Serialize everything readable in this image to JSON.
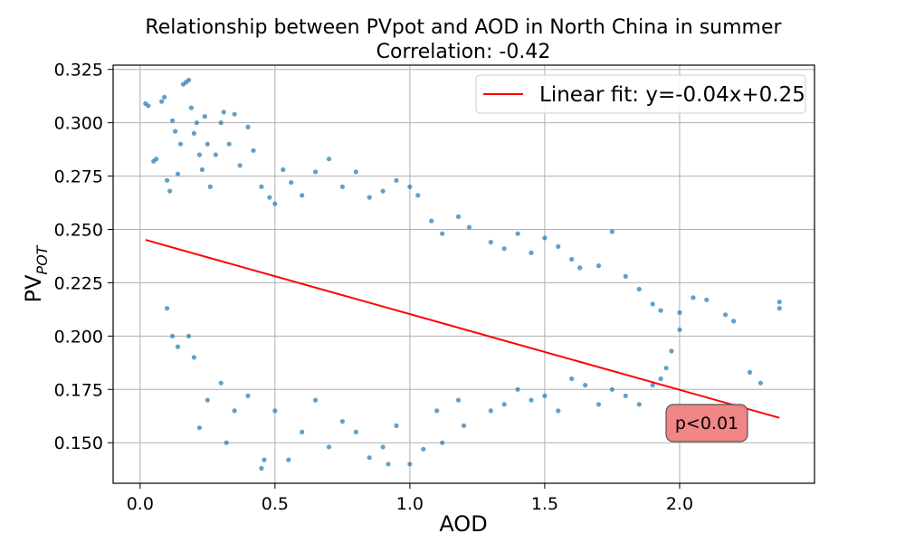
{
  "chart_data": {
    "type": "scatter",
    "title": "Relationship between PVpot and AOD in North China in summer",
    "subtitle": "Correlation: -0.42",
    "xlabel": "AOD",
    "ylabel_main": "PV",
    "ylabel_sub": "POT",
    "xlim": [
      -0.1,
      2.5
    ],
    "ylim": [
      0.131,
      0.327
    ],
    "xticks": [
      0.0,
      0.5,
      1.0,
      1.5,
      2.0
    ],
    "xtick_labels": [
      "0.0",
      "0.5",
      "1.0",
      "1.5",
      "2.0"
    ],
    "yticks": [
      0.15,
      0.175,
      0.2,
      0.225,
      0.25,
      0.275,
      0.3,
      0.325
    ],
    "ytick_labels": [
      "0.150",
      "0.175",
      "0.200",
      "0.225",
      "0.250",
      "0.275",
      "0.300",
      "0.325"
    ],
    "grid": true,
    "legend": {
      "position": "upper right",
      "entries": [
        {
          "label": "Linear fit: y=-0.04x+0.25",
          "color": "#ff0000",
          "marker": "line"
        }
      ]
    },
    "fit_line": {
      "slope": -0.0355,
      "intercept": 0.2458,
      "x_range": [
        0.02,
        2.37
      ],
      "color": "#ff0000"
    },
    "annotation": {
      "text": "p<0.01",
      "x": 2.09,
      "y": 0.1555,
      "background": "#f08080"
    },
    "scatter_color": "#1f77b4",
    "series": [
      {
        "points": [
          [
            0.02,
            0.309
          ],
          [
            0.03,
            0.308
          ],
          [
            0.05,
            0.282
          ],
          [
            0.06,
            0.283
          ],
          [
            0.08,
            0.31
          ],
          [
            0.09,
            0.312
          ],
          [
            0.1,
            0.273
          ],
          [
            0.11,
            0.268
          ],
          [
            0.12,
            0.301
          ],
          [
            0.13,
            0.296
          ],
          [
            0.14,
            0.276
          ],
          [
            0.15,
            0.29
          ],
          [
            0.16,
            0.318
          ],
          [
            0.17,
            0.319
          ],
          [
            0.18,
            0.32
          ],
          [
            0.19,
            0.307
          ],
          [
            0.2,
            0.295
          ],
          [
            0.21,
            0.3
          ],
          [
            0.22,
            0.285
          ],
          [
            0.23,
            0.278
          ],
          [
            0.24,
            0.303
          ],
          [
            0.25,
            0.29
          ],
          [
            0.26,
            0.27
          ],
          [
            0.28,
            0.285
          ],
          [
            0.3,
            0.3
          ],
          [
            0.31,
            0.305
          ],
          [
            0.33,
            0.29
          ],
          [
            0.35,
            0.304
          ],
          [
            0.37,
            0.28
          ],
          [
            0.4,
            0.298
          ],
          [
            0.42,
            0.287
          ],
          [
            0.45,
            0.27
          ],
          [
            0.48,
            0.265
          ],
          [
            0.5,
            0.262
          ],
          [
            0.53,
            0.278
          ],
          [
            0.56,
            0.272
          ],
          [
            0.6,
            0.266
          ],
          [
            0.65,
            0.277
          ],
          [
            0.7,
            0.283
          ],
          [
            0.75,
            0.27
          ],
          [
            0.8,
            0.277
          ],
          [
            0.85,
            0.265
          ],
          [
            0.9,
            0.268
          ],
          [
            0.95,
            0.273
          ],
          [
            1.0,
            0.27
          ],
          [
            1.03,
            0.266
          ],
          [
            1.08,
            0.254
          ],
          [
            1.12,
            0.248
          ],
          [
            1.18,
            0.256
          ],
          [
            1.22,
            0.251
          ],
          [
            1.3,
            0.244
          ],
          [
            1.35,
            0.241
          ],
          [
            1.4,
            0.248
          ],
          [
            1.45,
            0.239
          ],
          [
            1.5,
            0.246
          ],
          [
            1.55,
            0.242
          ],
          [
            1.6,
            0.236
          ],
          [
            1.63,
            0.232
          ],
          [
            1.7,
            0.233
          ],
          [
            1.75,
            0.249
          ],
          [
            1.8,
            0.228
          ],
          [
            1.85,
            0.222
          ],
          [
            1.9,
            0.215
          ],
          [
            1.93,
            0.212
          ],
          [
            2.0,
            0.211
          ],
          [
            2.05,
            0.218
          ],
          [
            2.1,
            0.217
          ],
          [
            2.17,
            0.21
          ],
          [
            2.2,
            0.207
          ],
          [
            2.26,
            0.183
          ],
          [
            2.3,
            0.178
          ],
          [
            2.37,
            0.216
          ],
          [
            2.37,
            0.213
          ],
          [
            0.1,
            0.213
          ],
          [
            0.12,
            0.2
          ],
          [
            0.14,
            0.195
          ],
          [
            0.18,
            0.2
          ],
          [
            0.2,
            0.19
          ],
          [
            0.22,
            0.157
          ],
          [
            0.25,
            0.17
          ],
          [
            0.3,
            0.178
          ],
          [
            0.32,
            0.15
          ],
          [
            0.35,
            0.165
          ],
          [
            0.4,
            0.172
          ],
          [
            0.45,
            0.138
          ],
          [
            0.46,
            0.142
          ],
          [
            0.5,
            0.165
          ],
          [
            0.55,
            0.142
          ],
          [
            0.6,
            0.155
          ],
          [
            0.65,
            0.17
          ],
          [
            0.7,
            0.148
          ],
          [
            0.75,
            0.16
          ],
          [
            0.8,
            0.155
          ],
          [
            0.85,
            0.143
          ],
          [
            0.9,
            0.148
          ],
          [
            0.92,
            0.14
          ],
          [
            0.95,
            0.158
          ],
          [
            1.0,
            0.14
          ],
          [
            1.05,
            0.147
          ],
          [
            1.1,
            0.165
          ],
          [
            1.12,
            0.15
          ],
          [
            1.18,
            0.17
          ],
          [
            1.2,
            0.158
          ],
          [
            1.3,
            0.165
          ],
          [
            1.35,
            0.168
          ],
          [
            1.4,
            0.175
          ],
          [
            1.45,
            0.17
          ],
          [
            1.5,
            0.172
          ],
          [
            1.55,
            0.165
          ],
          [
            1.6,
            0.18
          ],
          [
            1.65,
            0.177
          ],
          [
            1.7,
            0.168
          ],
          [
            1.75,
            0.175
          ],
          [
            1.8,
            0.172
          ],
          [
            1.85,
            0.168
          ],
          [
            1.9,
            0.177
          ],
          [
            1.93,
            0.18
          ],
          [
            1.95,
            0.185
          ],
          [
            2.0,
            0.203
          ],
          [
            1.97,
            0.193
          ]
        ]
      }
    ]
  }
}
